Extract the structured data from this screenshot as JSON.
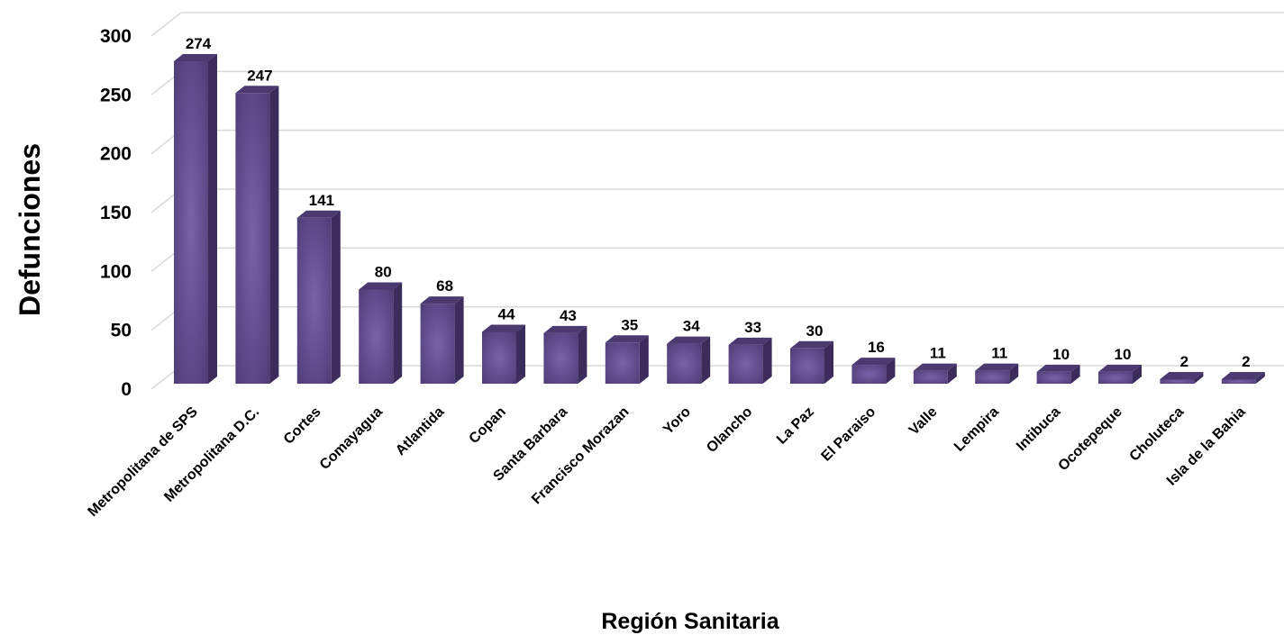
{
  "chart_data": {
    "type": "bar",
    "xlabel": "Región Sanitaria",
    "ylabel": "Defunciones",
    "ylim": [
      0,
      300
    ],
    "yticks": [
      "0",
      "50",
      "100",
      "150",
      "200",
      "250",
      "300"
    ],
    "grid": true,
    "bar_color": "#5c4a86",
    "categories": [
      "Metropolitana de SPS",
      "Metropolitana D.C.",
      "Cortes",
      "Comayagua",
      "Atlantida",
      "Copan",
      "Santa Barbara",
      "Francisco Morazan",
      "Yoro",
      "Olancho",
      "La Paz",
      "El Paraiso",
      "Valle",
      "Lempira",
      "Intibuca",
      "Ocotepeque",
      "Choluteca",
      "Isla de la Bahia"
    ],
    "values": [
      274,
      247,
      141,
      80,
      68,
      44,
      43,
      35,
      34,
      33,
      30,
      16,
      11,
      11,
      10,
      10,
      2,
      2
    ]
  }
}
